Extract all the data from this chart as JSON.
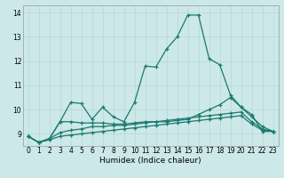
{
  "xlabel": "Humidex (Indice chaleur)",
  "bg_color": "#cce8e8",
  "grid_color": "#b8d8d8",
  "line_color": "#1a7a6e",
  "xlim": [
    -0.5,
    23.5
  ],
  "ylim": [
    8.5,
    14.3
  ],
  "yticks": [
    9,
    10,
    11,
    12,
    13,
    14
  ],
  "xticks": [
    0,
    1,
    2,
    3,
    4,
    5,
    6,
    7,
    8,
    9,
    10,
    11,
    12,
    13,
    14,
    15,
    16,
    17,
    18,
    19,
    20,
    21,
    22,
    23
  ],
  "line1_y": [
    8.9,
    8.65,
    8.8,
    9.5,
    10.3,
    10.25,
    9.6,
    10.1,
    9.7,
    9.5,
    10.3,
    11.8,
    11.75,
    12.5,
    13.0,
    13.9,
    13.9,
    12.1,
    11.85,
    10.6,
    10.1,
    9.8,
    9.1,
    9.1
  ],
  "line2_y": [
    8.9,
    8.65,
    8.8,
    9.5,
    9.5,
    9.45,
    9.45,
    9.45,
    9.4,
    9.4,
    9.45,
    9.5,
    9.5,
    9.5,
    9.55,
    9.6,
    9.8,
    10.0,
    10.2,
    10.5,
    10.1,
    9.7,
    9.3,
    9.1
  ],
  "line3_y": [
    8.9,
    8.65,
    8.8,
    9.05,
    9.15,
    9.2,
    9.3,
    9.3,
    9.35,
    9.35,
    9.4,
    9.45,
    9.5,
    9.55,
    9.6,
    9.65,
    9.7,
    9.75,
    9.8,
    9.85,
    9.9,
    9.5,
    9.2,
    9.1
  ],
  "line4_y": [
    8.9,
    8.65,
    8.75,
    8.9,
    8.95,
    9.0,
    9.05,
    9.1,
    9.15,
    9.2,
    9.25,
    9.3,
    9.35,
    9.4,
    9.45,
    9.5,
    9.55,
    9.6,
    9.65,
    9.7,
    9.75,
    9.4,
    9.15,
    9.1
  ],
  "tick_fontsize": 5.5,
  "xlabel_fontsize": 6.5,
  "marker_size": 3.5,
  "line_width": 0.9
}
